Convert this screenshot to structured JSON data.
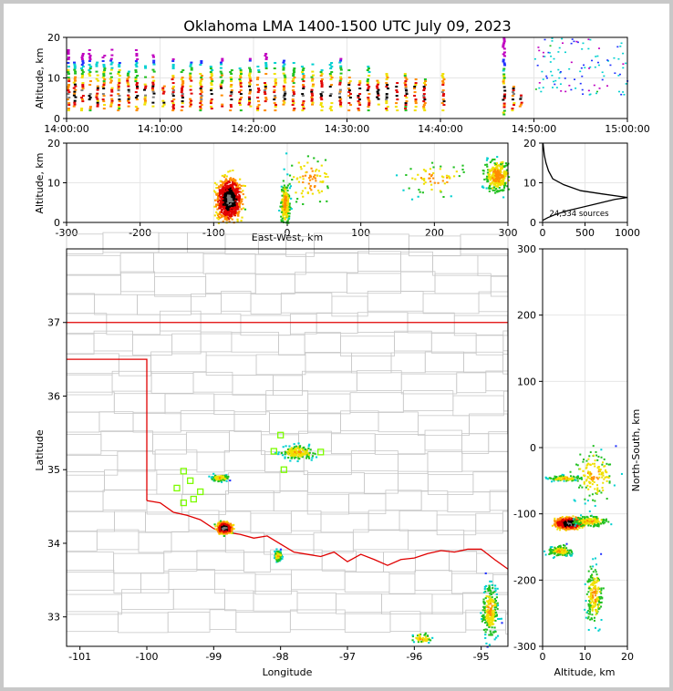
{
  "title": "Oklahoma LMA 1400-1500 UTC July 09, 2023",
  "colors": {
    "frame": "#c8c8c8",
    "boundary": "#e00000",
    "county": "#c8c8c8",
    "station": "#7cfc00",
    "grid": "#e6e6e6"
  },
  "chart_data": [
    {
      "type": "scatter",
      "name": "time-height",
      "xlabel": "",
      "ylabel": "Altitude, km",
      "xticks": [
        "14:00:00",
        "14:10:00",
        "14:20:00",
        "14:30:00",
        "14:40:00",
        "14:50:00",
        "15:00:00"
      ],
      "xlim": [
        0,
        60
      ],
      "ylim": [
        0,
        20
      ],
      "yticks": [
        0,
        10,
        20
      ],
      "columns": [
        {
          "t": 0.2,
          "lo": 2,
          "hi": 17
        },
        {
          "t": 0.9,
          "lo": 3,
          "hi": 14
        },
        {
          "t": 1.7,
          "lo": 2,
          "hi": 16
        },
        {
          "t": 2.5,
          "lo": 2,
          "hi": 18
        },
        {
          "t": 3.3,
          "lo": 3,
          "hi": 15
        },
        {
          "t": 4.0,
          "lo": 2,
          "hi": 16
        },
        {
          "t": 4.8,
          "lo": 3,
          "hi": 17
        },
        {
          "t": 5.6,
          "lo": 2,
          "hi": 14
        },
        {
          "t": 6.6,
          "lo": 3,
          "hi": 12
        },
        {
          "t": 7.5,
          "lo": 2,
          "hi": 17
        },
        {
          "t": 8.4,
          "lo": 3,
          "hi": 14
        },
        {
          "t": 9.3,
          "lo": 3,
          "hi": 16
        },
        {
          "t": 10.4,
          "lo": 3,
          "hi": 9
        },
        {
          "t": 11.4,
          "lo": 2,
          "hi": 15
        },
        {
          "t": 12.4,
          "lo": 2,
          "hi": 12
        },
        {
          "t": 13.3,
          "lo": 3,
          "hi": 14
        },
        {
          "t": 14.4,
          "lo": 2,
          "hi": 15
        },
        {
          "t": 15.5,
          "lo": 2,
          "hi": 13
        },
        {
          "t": 16.6,
          "lo": 3,
          "hi": 15
        },
        {
          "t": 17.6,
          "lo": 2,
          "hi": 12
        },
        {
          "t": 18.6,
          "lo": 2,
          "hi": 13
        },
        {
          "t": 19.6,
          "lo": 3,
          "hi": 15
        },
        {
          "t": 20.5,
          "lo": 2,
          "hi": 13
        },
        {
          "t": 21.3,
          "lo": 2,
          "hi": 16
        },
        {
          "t": 22.3,
          "lo": 2,
          "hi": 14
        },
        {
          "t": 23.3,
          "lo": 3,
          "hi": 15
        },
        {
          "t": 24.3,
          "lo": 2,
          "hi": 14
        },
        {
          "t": 25.3,
          "lo": 2,
          "hi": 13
        },
        {
          "t": 26.3,
          "lo": 3,
          "hi": 14
        },
        {
          "t": 27.3,
          "lo": 2,
          "hi": 12
        },
        {
          "t": 28.3,
          "lo": 2,
          "hi": 14
        },
        {
          "t": 29.3,
          "lo": 3,
          "hi": 15
        },
        {
          "t": 30.3,
          "lo": 2,
          "hi": 12
        },
        {
          "t": 31.3,
          "lo": 2,
          "hi": 10
        },
        {
          "t": 32.3,
          "lo": 2,
          "hi": 13
        },
        {
          "t": 33.3,
          "lo": 3,
          "hi": 10
        },
        {
          "t": 34.3,
          "lo": 2,
          "hi": 11
        },
        {
          "t": 35.3,
          "lo": 2,
          "hi": 9
        },
        {
          "t": 36.3,
          "lo": 2,
          "hi": 11
        },
        {
          "t": 37.3,
          "lo": 2,
          "hi": 10
        },
        {
          "t": 38.3,
          "lo": 2,
          "hi": 10
        },
        {
          "t": 40.3,
          "lo": 2,
          "hi": 11
        },
        {
          "t": 46.8,
          "lo": 1,
          "hi": 20
        },
        {
          "t": 47.8,
          "lo": 2,
          "hi": 8
        },
        {
          "t": 48.6,
          "lo": 3,
          "hi": 6
        }
      ],
      "scatter_region": {
        "t0": 50,
        "t1": 60,
        "lo": 6,
        "hi": 20
      }
    },
    {
      "type": "scatter",
      "name": "east-west-altitude",
      "xlabel": "East-West, km",
      "ylabel": "Altitude, km",
      "xlim": [
        -300,
        300
      ],
      "xticks": [
        -300,
        -200,
        -100,
        0,
        100,
        200,
        300
      ],
      "ylim": [
        0,
        20
      ],
      "yticks": [
        0,
        10,
        20
      ],
      "clusters": [
        {
          "x": -80,
          "z": 6,
          "sx": 16,
          "sz": 5,
          "n": 900,
          "core": true
        },
        {
          "x": -4,
          "z": 5,
          "sx": 6,
          "sz": 5,
          "n": 220
        },
        {
          "x": 30,
          "z": 11,
          "sx": 30,
          "sz": 6,
          "n": 80
        },
        {
          "x": 200,
          "z": 11,
          "sx": 40,
          "sz": 4,
          "n": 60
        },
        {
          "x": 285,
          "z": 12,
          "sx": 18,
          "sz": 4,
          "n": 300
        }
      ]
    },
    {
      "type": "line",
      "name": "altitude-histogram",
      "xlim": [
        0,
        1000
      ],
      "xticks": [
        0,
        500,
        1000
      ],
      "ylim": [
        0,
        20
      ],
      "yticks": [
        0,
        10,
        20
      ],
      "annotation": "24,534 sources",
      "profile": [
        [
          0,
          0.5
        ],
        [
          60,
          1.2
        ],
        [
          150,
          2
        ],
        [
          300,
          3
        ],
        [
          600,
          4.5
        ],
        [
          850,
          5.8
        ],
        [
          1000,
          6.3
        ],
        [
          700,
          7.2
        ],
        [
          450,
          8
        ],
        [
          250,
          9.5
        ],
        [
          120,
          11
        ],
        [
          70,
          13
        ],
        [
          40,
          15
        ],
        [
          20,
          17
        ],
        [
          10,
          19
        ],
        [
          5,
          20
        ]
      ]
    },
    {
      "type": "scatter",
      "name": "plan-view",
      "xlabel": "Longitude",
      "ylabel": "Latitude",
      "xlim": [
        -101.2,
        -94.6
      ],
      "ylim": [
        32.6,
        38.0
      ],
      "xticks": [
        -101,
        -100,
        -99,
        -98,
        -97,
        -96,
        -95
      ],
      "yticks": [
        33,
        34,
        35,
        36,
        37
      ],
      "clusters": [
        {
          "lon": -98.85,
          "lat": 34.22,
          "sx": 0.1,
          "sy": 0.07,
          "n": 700,
          "core": true
        },
        {
          "lon": -98.05,
          "lat": 33.84,
          "sx": 0.05,
          "sy": 0.07,
          "n": 120
        },
        {
          "lon": -98.92,
          "lat": 34.9,
          "sx": 0.12,
          "sy": 0.05,
          "n": 110
        },
        {
          "lon": -97.75,
          "lat": 35.25,
          "sx": 0.25,
          "sy": 0.1,
          "n": 180
        },
        {
          "lon": -94.88,
          "lat": 33.1,
          "sx": 0.12,
          "sy": 0.35,
          "n": 250
        },
        {
          "lon": -95.9,
          "lat": 32.72,
          "sx": 0.15,
          "sy": 0.08,
          "n": 50
        }
      ],
      "stations": [
        [
          -98.0,
          35.47
        ],
        [
          -98.1,
          35.25
        ],
        [
          -97.4,
          35.24
        ],
        [
          -97.95,
          35.0
        ],
        [
          -99.45,
          34.98
        ],
        [
          -99.35,
          34.85
        ],
        [
          -99.55,
          34.75
        ],
        [
          -99.3,
          34.6
        ],
        [
          -99.45,
          34.55
        ],
        [
          -99.2,
          34.7
        ]
      ],
      "boundary_north": 37.0,
      "panhandle_lat": 36.5,
      "panhandle_lon": -100.0,
      "red_river": [
        [
          -100.0,
          34.58
        ],
        [
          -99.8,
          34.55
        ],
        [
          -99.6,
          34.42
        ],
        [
          -99.4,
          34.38
        ],
        [
          -99.2,
          34.32
        ],
        [
          -99.0,
          34.2
        ],
        [
          -98.8,
          34.15
        ],
        [
          -98.6,
          34.12
        ],
        [
          -98.4,
          34.07
        ],
        [
          -98.2,
          34.1
        ],
        [
          -98.0,
          33.99
        ],
        [
          -97.8,
          33.88
        ],
        [
          -97.6,
          33.85
        ],
        [
          -97.4,
          33.82
        ],
        [
          -97.2,
          33.88
        ],
        [
          -97.0,
          33.75
        ],
        [
          -96.8,
          33.85
        ],
        [
          -96.6,
          33.78
        ],
        [
          -96.4,
          33.7
        ],
        [
          -96.2,
          33.78
        ],
        [
          -96.0,
          33.8
        ],
        [
          -95.8,
          33.86
        ],
        [
          -95.6,
          33.9
        ],
        [
          -95.4,
          33.88
        ],
        [
          -95.2,
          33.92
        ],
        [
          -95.0,
          33.92
        ],
        [
          -94.8,
          33.78
        ],
        [
          -94.6,
          33.65
        ]
      ]
    },
    {
      "type": "scatter",
      "name": "altitude-north-south",
      "xlabel": "Altitude, km",
      "ylabel": "North-South, km",
      "xlim": [
        0,
        20
      ],
      "xticks": [
        0,
        10,
        20
      ],
      "ylim": [
        -300,
        300
      ],
      "yticks": [
        -300,
        -200,
        -100,
        0,
        100,
        200,
        300
      ],
      "clusters": [
        {
          "z": 6,
          "y": -113,
          "sx": 3,
          "sy": 8,
          "n": 700,
          "core": true
        },
        {
          "z": 4,
          "y": -155,
          "sx": 3,
          "sy": 8,
          "n": 150
        },
        {
          "z": 5,
          "y": -45,
          "sx": 4,
          "sy": 4,
          "n": 110
        },
        {
          "z": 11,
          "y": -110,
          "sx": 4,
          "sy": 8,
          "n": 160
        },
        {
          "z": 12,
          "y": -220,
          "sx": 2,
          "sy": 45,
          "n": 200
        },
        {
          "z": 12,
          "y": -40,
          "sx": 5,
          "sy": 40,
          "n": 150
        }
      ]
    }
  ]
}
